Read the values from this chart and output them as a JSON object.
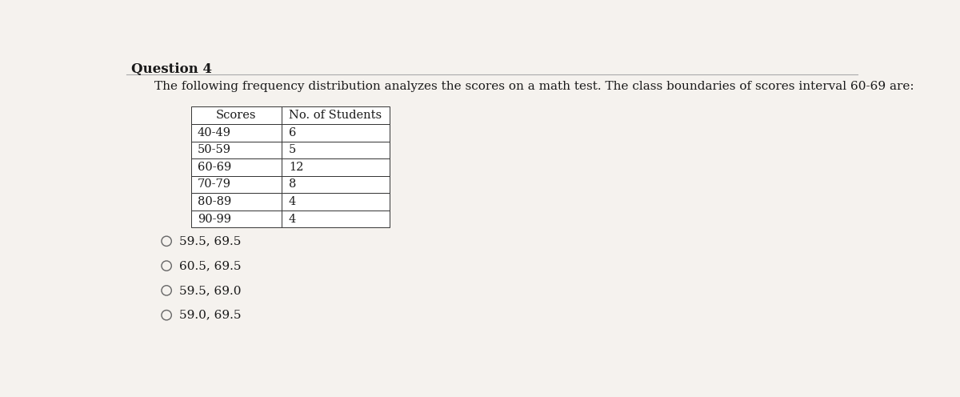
{
  "title": "Question 4",
  "question_text": "The following frequency distribution analyzes the scores on a math test. The class boundaries of scores interval 60-69 are:",
  "table_headers": [
    "Scores",
    "No. of Students"
  ],
  "table_rows": [
    [
      "40-49",
      "6"
    ],
    [
      "50-59",
      "5"
    ],
    [
      "60-69",
      "12"
    ],
    [
      "70-79",
      "8"
    ],
    [
      "80-89",
      "4"
    ],
    [
      "90-99",
      "4"
    ]
  ],
  "choices": [
    "59.5, 69.5",
    "60.5, 69.5",
    "59.5, 69.0",
    "59.0, 69.5"
  ],
  "background_color": "#f5f2ee",
  "title_fontsize": 12,
  "question_fontsize": 11,
  "table_fontsize": 10.5,
  "choice_fontsize": 11
}
